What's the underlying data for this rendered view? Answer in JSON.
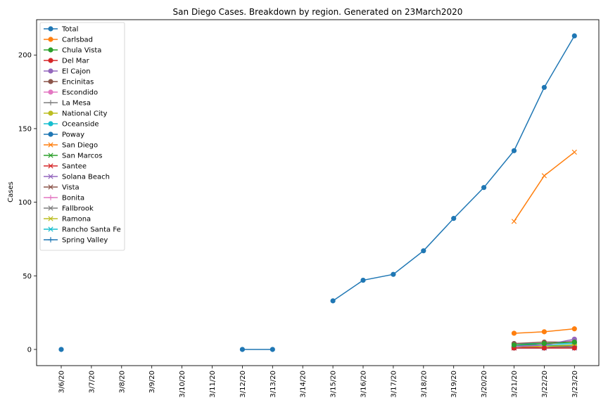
{
  "chart_data": {
    "type": "line",
    "title": "San Diego Cases. Breakdown by region. Generated on 23March2020",
    "xlabel": "",
    "ylabel": "Cases",
    "ylim": [
      -11,
      224
    ],
    "yticks": [
      0,
      50,
      100,
      150,
      200
    ],
    "categories": [
      "3/6/20",
      "3/7/20",
      "3/8/20",
      "3/9/20",
      "3/10/20",
      "3/11/20",
      "3/12/20",
      "3/13/20",
      "3/14/20",
      "3/15/20",
      "3/16/20",
      "3/17/20",
      "3/18/20",
      "3/19/20",
      "3/20/20",
      "3/21/20",
      "3/22/20",
      "3/23/20"
    ],
    "grid": false,
    "legend_loc": "upper left",
    "series": [
      {
        "name": "Total",
        "marker": "o",
        "color": "#1f77b4",
        "values": [
          0,
          null,
          null,
          null,
          null,
          null,
          0,
          0,
          null,
          33,
          47,
          51,
          67,
          89,
          110,
          135,
          178,
          213
        ]
      },
      {
        "name": "Carlsbad",
        "marker": "o",
        "color": "#ff7f0e",
        "values": [
          null,
          null,
          null,
          null,
          null,
          null,
          null,
          null,
          null,
          null,
          null,
          null,
          null,
          null,
          null,
          11,
          12,
          14
        ]
      },
      {
        "name": "Chula Vista",
        "marker": "o",
        "color": "#2ca02c",
        "values": [
          null,
          null,
          null,
          null,
          null,
          null,
          null,
          null,
          null,
          null,
          null,
          null,
          null,
          null,
          null,
          3,
          4,
          5
        ]
      },
      {
        "name": "Del Mar",
        "marker": "o",
        "color": "#d62728",
        "values": [
          null,
          null,
          null,
          null,
          null,
          null,
          null,
          null,
          null,
          null,
          null,
          null,
          null,
          null,
          null,
          1,
          1,
          1
        ]
      },
      {
        "name": "El Cajon",
        "marker": "o",
        "color": "#9467bd",
        "values": [
          null,
          null,
          null,
          null,
          null,
          null,
          null,
          null,
          null,
          null,
          null,
          null,
          null,
          null,
          null,
          2,
          3,
          7
        ]
      },
      {
        "name": "Encinitas",
        "marker": "o",
        "color": "#8c564b",
        "values": [
          null,
          null,
          null,
          null,
          null,
          null,
          null,
          null,
          null,
          null,
          null,
          null,
          null,
          null,
          null,
          4,
          5,
          5
        ]
      },
      {
        "name": "Escondido",
        "marker": "o",
        "color": "#e377c2",
        "values": [
          null,
          null,
          null,
          null,
          null,
          null,
          null,
          null,
          null,
          null,
          null,
          null,
          null,
          null,
          null,
          2,
          3,
          6
        ]
      },
      {
        "name": "La Mesa",
        "marker": "+",
        "color": "#7f7f7f",
        "values": [
          null,
          null,
          null,
          null,
          null,
          null,
          null,
          null,
          null,
          null,
          null,
          null,
          null,
          null,
          null,
          1,
          1,
          2
        ]
      },
      {
        "name": "National City",
        "marker": "o",
        "color": "#bcbd22",
        "values": [
          null,
          null,
          null,
          null,
          null,
          null,
          null,
          null,
          null,
          null,
          null,
          null,
          null,
          null,
          null,
          2,
          2,
          3
        ]
      },
      {
        "name": "Oceanside",
        "marker": "o",
        "color": "#17becf",
        "values": [
          null,
          null,
          null,
          null,
          null,
          null,
          null,
          null,
          null,
          null,
          null,
          null,
          null,
          null,
          null,
          4,
          4,
          4
        ]
      },
      {
        "name": "Poway",
        "marker": "o",
        "color": "#1f77b4",
        "values": [
          null,
          null,
          null,
          null,
          null,
          null,
          null,
          null,
          null,
          null,
          null,
          null,
          null,
          null,
          null,
          1,
          1,
          2
        ]
      },
      {
        "name": "San Diego",
        "marker": "x",
        "color": "#ff7f0e",
        "values": [
          null,
          null,
          null,
          null,
          null,
          null,
          null,
          null,
          null,
          null,
          null,
          null,
          null,
          null,
          null,
          87,
          118,
          134
        ]
      },
      {
        "name": "San Marcos",
        "marker": "x",
        "color": "#2ca02c",
        "values": [
          null,
          null,
          null,
          null,
          null,
          null,
          null,
          null,
          null,
          null,
          null,
          null,
          null,
          null,
          null,
          2,
          2,
          3
        ]
      },
      {
        "name": "Santee",
        "marker": "x",
        "color": "#d62728",
        "values": [
          null,
          null,
          null,
          null,
          null,
          null,
          null,
          null,
          null,
          null,
          null,
          null,
          null,
          null,
          null,
          1,
          2,
          2
        ]
      },
      {
        "name": "Solana Beach",
        "marker": "x",
        "color": "#9467bd",
        "values": [
          null,
          null,
          null,
          null,
          null,
          null,
          null,
          null,
          null,
          null,
          null,
          null,
          null,
          null,
          null,
          1,
          1,
          1
        ]
      },
      {
        "name": "Vista",
        "marker": "x",
        "color": "#8c564b",
        "values": [
          null,
          null,
          null,
          null,
          null,
          null,
          null,
          null,
          null,
          null,
          null,
          null,
          null,
          null,
          null,
          1,
          1,
          1
        ]
      },
      {
        "name": "Bonita",
        "marker": "+",
        "color": "#e377c2",
        "values": [
          null,
          null,
          null,
          null,
          null,
          null,
          null,
          null,
          null,
          null,
          null,
          null,
          null,
          null,
          null,
          1,
          1,
          1
        ]
      },
      {
        "name": "Fallbrook",
        "marker": "x",
        "color": "#7f7f7f",
        "values": [
          null,
          null,
          null,
          null,
          null,
          null,
          null,
          null,
          null,
          null,
          null,
          null,
          null,
          null,
          null,
          1,
          1,
          1
        ]
      },
      {
        "name": "Ramona",
        "marker": "x",
        "color": "#bcbd22",
        "values": [
          null,
          null,
          null,
          null,
          null,
          null,
          null,
          null,
          null,
          null,
          null,
          null,
          null,
          null,
          null,
          2,
          2,
          2
        ]
      },
      {
        "name": "Rancho Santa Fe",
        "marker": "x",
        "color": "#17becf",
        "values": [
          null,
          null,
          null,
          null,
          null,
          null,
          null,
          null,
          null,
          null,
          null,
          null,
          null,
          null,
          null,
          3,
          3,
          3
        ]
      },
      {
        "name": "Spring Valley",
        "marker": "+",
        "color": "#1f77b4",
        "values": [
          null,
          null,
          null,
          null,
          null,
          null,
          null,
          null,
          null,
          null,
          null,
          null,
          null,
          null,
          null,
          2,
          2,
          2
        ]
      }
    ]
  }
}
